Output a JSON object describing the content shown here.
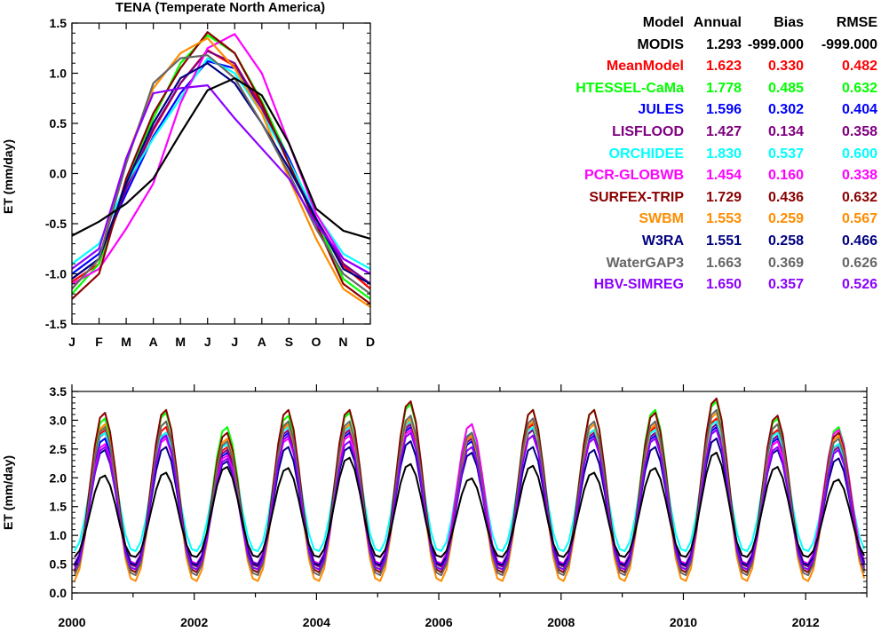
{
  "chart_data": [
    {
      "type": "line",
      "title": "TENA (Temperate North America)",
      "xlabel": "",
      "ylabel": "ET (mm/day)",
      "categories": [
        "J",
        "F",
        "M",
        "A",
        "M",
        "J",
        "J",
        "A",
        "S",
        "O",
        "N",
        "D"
      ],
      "ylim": [
        -1.5,
        1.5
      ],
      "yticks": [
        "-1.5",
        "-1.0",
        "-0.5",
        "0.0",
        "0.5",
        "1.0",
        "1.5"
      ],
      "legend": "none",
      "series": [
        {
          "name": "MODIS",
          "color": "#000000",
          "values": [
            -0.62,
            -0.48,
            -0.3,
            -0.05,
            0.4,
            0.83,
            0.95,
            0.78,
            0.3,
            -0.35,
            -0.57,
            -0.65
          ]
        },
        {
          "name": "MeanModel",
          "color": "#ff0000",
          "values": [
            -1.08,
            -0.9,
            -0.15,
            0.43,
            0.9,
            1.23,
            1.07,
            0.69,
            0.15,
            -0.45,
            -0.92,
            -1.15
          ]
        },
        {
          "name": "HTESSEL-CaMa",
          "color": "#00ff00",
          "values": [
            -1.2,
            -0.9,
            -0.1,
            0.55,
            1.1,
            1.38,
            1.2,
            0.72,
            0.15,
            -0.45,
            -1.05,
            -1.25
          ]
        },
        {
          "name": "JULES",
          "color": "#0000ff",
          "values": [
            -1.0,
            -0.8,
            -0.2,
            0.37,
            0.8,
            1.12,
            1.05,
            0.65,
            0.15,
            -0.45,
            -0.9,
            -1.1
          ]
        },
        {
          "name": "LISFLOOD",
          "color": "#800080",
          "values": [
            -1.05,
            -0.85,
            -0.15,
            0.45,
            0.9,
            1.22,
            1.1,
            0.65,
            0.1,
            -0.45,
            -0.9,
            -1.1
          ]
        },
        {
          "name": "ORCHIDEE",
          "color": "#00ffff",
          "values": [
            -0.9,
            -0.7,
            -0.1,
            0.35,
            0.75,
            1.15,
            1.0,
            0.6,
            0.12,
            -0.4,
            -0.8,
            -0.95
          ]
        },
        {
          "name": "PCR-GLOBWB",
          "color": "#ff00ff",
          "values": [
            -1.1,
            -0.95,
            -0.55,
            -0.1,
            0.7,
            1.25,
            1.39,
            1.0,
            0.3,
            -0.4,
            -0.85,
            -1.0
          ]
        },
        {
          "name": "SURFEX-TRIP",
          "color": "#8b0000",
          "values": [
            -1.25,
            -1.0,
            -0.05,
            0.6,
            1.05,
            1.41,
            1.2,
            0.7,
            0.1,
            -0.5,
            -1.1,
            -1.3
          ]
        },
        {
          "name": "SWBM",
          "color": "#ff8c00",
          "values": [
            -1.15,
            -0.85,
            0.15,
            0.85,
            1.2,
            1.35,
            1.05,
            0.6,
            -0.05,
            -0.65,
            -1.15,
            -1.33
          ]
        },
        {
          "name": "W3RA",
          "color": "#000080",
          "values": [
            -1.05,
            -0.85,
            -0.1,
            0.5,
            0.95,
            1.1,
            0.9,
            0.5,
            0.05,
            -0.45,
            -0.95,
            -1.1
          ]
        },
        {
          "name": "WaterGAP3",
          "color": "#666666",
          "values": [
            -1.15,
            -0.85,
            0.1,
            0.9,
            1.15,
            1.18,
            0.95,
            0.5,
            0.0,
            -0.55,
            -1.0,
            -1.2
          ]
        },
        {
          "name": "HBV-SIMREG",
          "color": "#8b00ff",
          "values": [
            -0.95,
            -0.75,
            0.15,
            0.8,
            0.85,
            0.88,
            0.55,
            0.25,
            -0.05,
            -0.5,
            -0.85,
            -1.0
          ]
        }
      ]
    },
    {
      "type": "line",
      "title": "",
      "xlabel": "",
      "ylabel": "ET (mm/day)",
      "xlim": [
        2000,
        2013
      ],
      "xticks": [
        "2000",
        "2002",
        "2004",
        "2006",
        "2008",
        "2010",
        "2012"
      ],
      "ylim": [
        0.0,
        3.5
      ],
      "yticks": [
        "0.0",
        "0.5",
        "1.0",
        "1.5",
        "2.0",
        "2.5",
        "3.0",
        "3.5"
      ],
      "legend": "none",
      "series": [
        {
          "name": "MODIS",
          "color": "#000000",
          "min": 0.62,
          "peaks": [
            2.05,
            2.1,
            2.2,
            2.18,
            2.36,
            2.25,
            2.0,
            2.22,
            2.1,
            2.18,
            2.45,
            2.2,
            1.98
          ]
        },
        {
          "name": "MeanModel",
          "color": "#ff0000",
          "min": 0.45,
          "peaks": [
            2.85,
            2.9,
            2.55,
            2.95,
            2.9,
            3.0,
            2.75,
            2.95,
            2.85,
            2.9,
            3.05,
            2.85,
            2.6
          ]
        },
        {
          "name": "HTESSEL-CaMa",
          "color": "#00ff00",
          "min": 0.4,
          "peaks": [
            3.05,
            3.15,
            2.9,
            3.1,
            3.15,
            3.3,
            2.95,
            3.2,
            3.2,
            3.2,
            3.35,
            3.05,
            2.9
          ]
        },
        {
          "name": "JULES",
          "color": "#0000ff",
          "min": 0.5,
          "peaks": [
            2.7,
            2.75,
            2.45,
            2.8,
            2.8,
            2.9,
            2.65,
            2.85,
            2.75,
            2.75,
            2.9,
            2.7,
            2.5
          ]
        },
        {
          "name": "LISFLOOD",
          "color": "#800080",
          "min": 0.45,
          "peaks": [
            2.8,
            2.8,
            2.5,
            2.85,
            2.85,
            2.95,
            2.7,
            2.85,
            2.8,
            2.8,
            2.95,
            2.75,
            2.55
          ]
        },
        {
          "name": "ORCHIDEE",
          "color": "#00ffff",
          "min": 0.72,
          "peaks": [
            2.8,
            2.8,
            2.6,
            2.9,
            2.9,
            3.0,
            2.8,
            2.9,
            2.85,
            2.85,
            3.0,
            2.8,
            2.6
          ]
        },
        {
          "name": "PCR-GLOBWB",
          "color": "#ff00ff",
          "min": 0.5,
          "peaks": [
            2.6,
            2.7,
            2.4,
            2.7,
            2.75,
            2.85,
            2.95,
            2.75,
            2.7,
            2.7,
            2.85,
            2.65,
            2.85
          ]
        },
        {
          "name": "SURFEX-TRIP",
          "color": "#8b0000",
          "min": 0.35,
          "peaks": [
            3.15,
            3.2,
            2.8,
            3.2,
            3.2,
            3.35,
            2.8,
            3.2,
            3.2,
            3.15,
            3.4,
            3.1,
            2.8
          ]
        },
        {
          "name": "SWBM",
          "color": "#ff8c00",
          "min": 0.2,
          "peaks": [
            2.95,
            3.0,
            2.7,
            2.95,
            2.95,
            3.05,
            2.75,
            3.0,
            2.95,
            2.95,
            3.15,
            2.95,
            2.75
          ]
        },
        {
          "name": "W3RA",
          "color": "#000080",
          "min": 0.48,
          "peaks": [
            2.5,
            2.55,
            2.3,
            2.55,
            2.55,
            2.65,
            2.45,
            2.55,
            2.5,
            2.55,
            2.7,
            2.5,
            2.35
          ]
        },
        {
          "name": "WaterGAP3",
          "color": "#666666",
          "min": 0.3,
          "peaks": [
            2.9,
            3.0,
            2.65,
            3.0,
            3.0,
            3.1,
            2.8,
            3.05,
            3.0,
            3.0,
            3.2,
            2.95,
            2.7
          ]
        },
        {
          "name": "HBV-SIMREG",
          "color": "#8b00ff",
          "min": 0.4,
          "peaks": [
            2.55,
            2.75,
            2.35,
            2.75,
            2.65,
            2.8,
            2.55,
            2.75,
            2.7,
            2.7,
            2.85,
            2.55,
            2.5
          ]
        }
      ]
    }
  ],
  "stats_table": {
    "headers": {
      "model": "Model",
      "annual": "Annual",
      "bias": "Bias",
      "rmse": "RMSE"
    },
    "rows": [
      {
        "model": "MODIS",
        "annual": "1.293",
        "bias": "-999.000",
        "rmse": "-999.000",
        "color": "#000000"
      },
      {
        "model": "MeanModel",
        "annual": "1.623",
        "bias": "0.330",
        "rmse": "0.482",
        "color": "#ff0000"
      },
      {
        "model": "HTESSEL-CaMa",
        "annual": "1.778",
        "bias": "0.485",
        "rmse": "0.632",
        "color": "#00ff00"
      },
      {
        "model": "JULES",
        "annual": "1.596",
        "bias": "0.302",
        "rmse": "0.404",
        "color": "#0000ff"
      },
      {
        "model": "LISFLOOD",
        "annual": "1.427",
        "bias": "0.134",
        "rmse": "0.358",
        "color": "#800080"
      },
      {
        "model": "ORCHIDEE",
        "annual": "1.830",
        "bias": "0.537",
        "rmse": "0.600",
        "color": "#00ffff"
      },
      {
        "model": "PCR-GLOBWB",
        "annual": "1.454",
        "bias": "0.160",
        "rmse": "0.338",
        "color": "#ff00ff"
      },
      {
        "model": "SURFEX-TRIP",
        "annual": "1.729",
        "bias": "0.436",
        "rmse": "0.632",
        "color": "#8b0000"
      },
      {
        "model": "SWBM",
        "annual": "1.553",
        "bias": "0.259",
        "rmse": "0.567",
        "color": "#ff8c00"
      },
      {
        "model": "W3RA",
        "annual": "1.551",
        "bias": "0.258",
        "rmse": "0.466",
        "color": "#000080"
      },
      {
        "model": "WaterGAP3",
        "annual": "1.663",
        "bias": "0.369",
        "rmse": "0.626",
        "color": "#666666"
      },
      {
        "model": "HBV-SIMREG",
        "annual": "1.650",
        "bias": "0.357",
        "rmse": "0.526",
        "color": "#8b00ff"
      }
    ]
  }
}
